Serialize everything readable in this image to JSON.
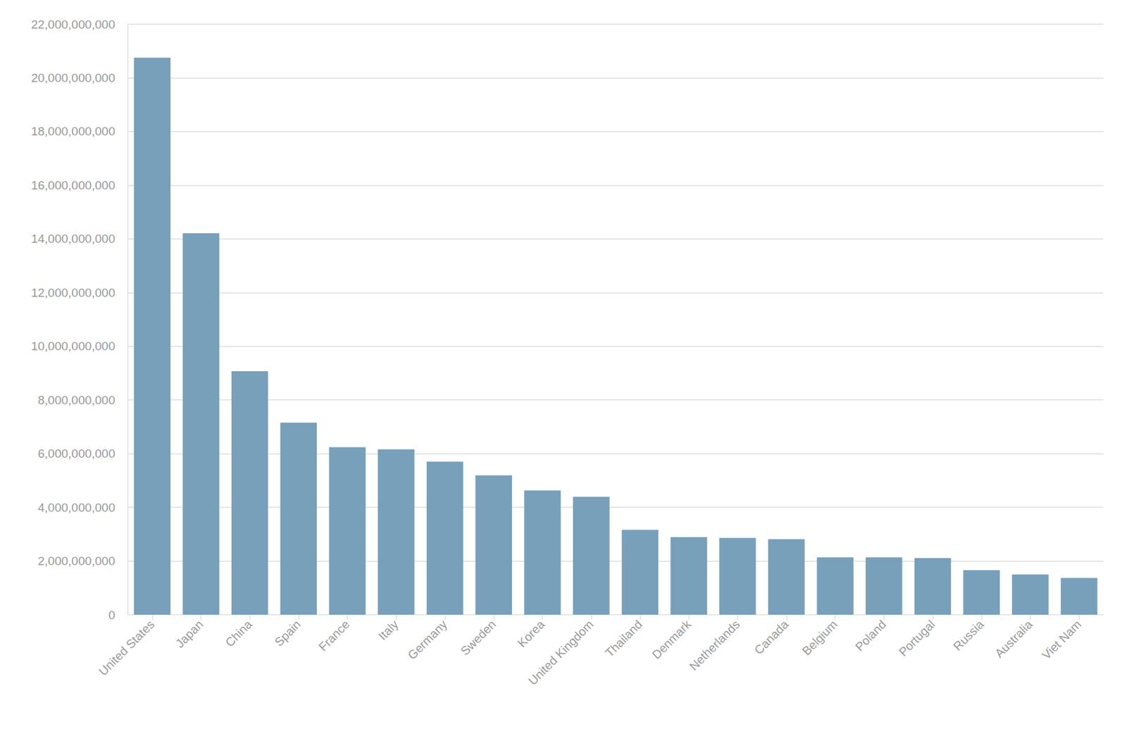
{
  "chart_data": {
    "type": "bar",
    "categories": [
      "United States",
      "Japan",
      "China",
      "Spain",
      "France",
      "Italy",
      "Germany",
      "Sweden",
      "Korea",
      "United Kingdom",
      "Thailand",
      "Denmark",
      "Netherlands",
      "Canada",
      "Belgium",
      "Poland",
      "Portugal",
      "Russia",
      "Australia",
      "Viet Nam"
    ],
    "values": [
      20750000000,
      14210000000,
      9070000000,
      7150000000,
      6240000000,
      6160000000,
      5700000000,
      5190000000,
      4630000000,
      4390000000,
      3160000000,
      2890000000,
      2860000000,
      2810000000,
      2140000000,
      2140000000,
      2110000000,
      1660000000,
      1500000000,
      1370000000
    ],
    "color": "#78a0bb",
    "ylim": [
      0,
      22000000000
    ],
    "yticks": [
      0,
      {
        "value": 2000000000,
        "label": "2,000,000,000"
      },
      {
        "value": 4000000000,
        "label": "4,000,000,000"
      },
      {
        "value": 6000000000,
        "label": "6,000,000,000"
      },
      {
        "value": 8000000000,
        "label": "8,000,000,000"
      },
      {
        "value": 10000000000,
        "label": "10,000,000,000"
      },
      {
        "value": 12000000000,
        "label": "12,000,000,000"
      },
      {
        "value": 14000000000,
        "label": "14,000,000,000"
      },
      {
        "value": 16000000000,
        "label": "16,000,000,000"
      },
      {
        "value": 18000000000,
        "label": "18,000,000,000"
      },
      {
        "value": 20000000000,
        "label": "20,000,000,000"
      },
      {
        "value": 22000000000,
        "label": "22,000,000,000"
      }
    ],
    "grid": true
  }
}
